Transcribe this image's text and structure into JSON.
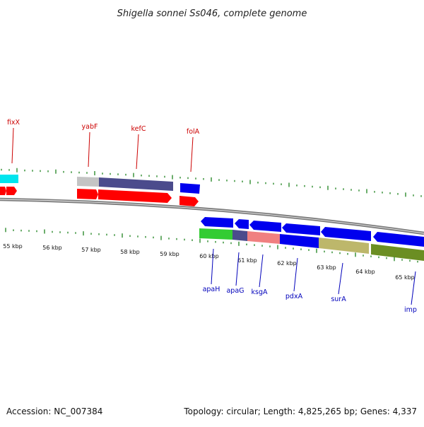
{
  "title": "Shigella sonnei Ss046, complete genome",
  "footer": {
    "accession": "Accession: NC_007384",
    "stats": "Topology: circular; Length: 4,825,265 bp; Genes: 4,337"
  },
  "colors": {
    "backbone": "#8a8a8a",
    "tick": "#2e8b2e",
    "label_top": "#cc0000",
    "label_bottom": "#0000bb"
  },
  "kbp_labels": [
    "55 kbp",
    "56 kbp",
    "57 kbp",
    "58 kbp",
    "59 kbp",
    "60 kbp",
    "61 kbp",
    "62 kbp",
    "63 kbp",
    "64 kbp",
    "65 kbp"
  ],
  "top_labels": [
    {
      "text": "fixX"
    },
    {
      "text": "yabF"
    },
    {
      "text": "kefC"
    },
    {
      "text": "folA"
    }
  ],
  "bottom_labels": [
    {
      "text": "apaH"
    },
    {
      "text": "apaG"
    },
    {
      "text": "ksgA"
    },
    {
      "text": "pdxA"
    },
    {
      "text": "surA"
    },
    {
      "text": "imp"
    }
  ]
}
